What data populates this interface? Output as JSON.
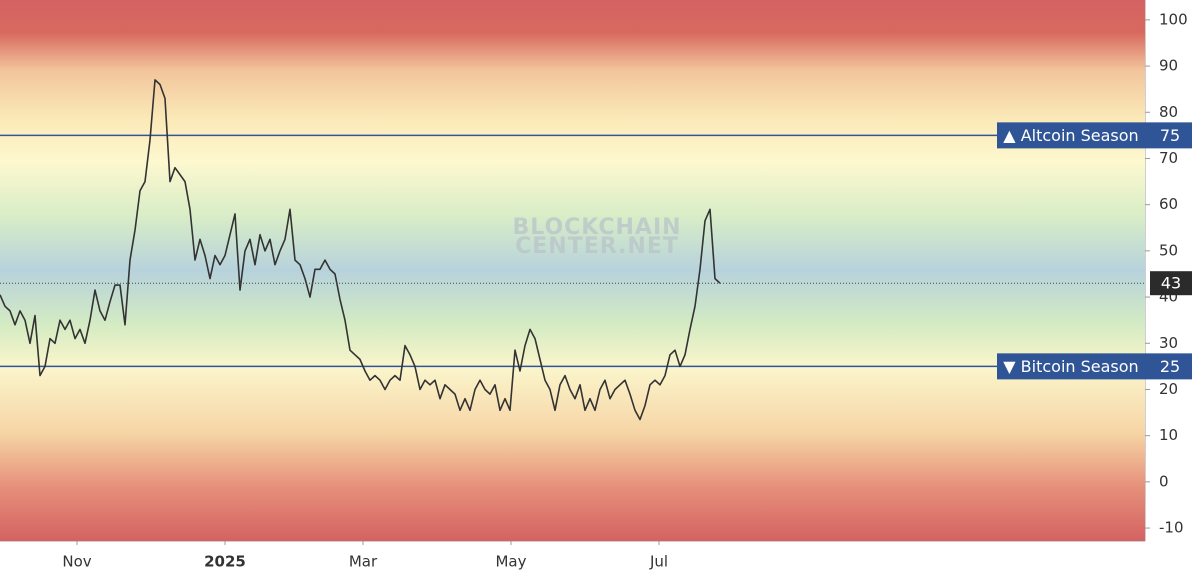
{
  "chart_data": {
    "type": "line",
    "color": "#333333",
    "values": [
      40.5,
      38,
      37,
      34,
      37,
      35,
      30,
      36,
      23,
      25,
      31,
      30,
      35,
      33,
      35,
      31,
      33,
      30,
      35,
      41.5,
      37,
      35,
      39,
      42.6,
      42.6,
      34,
      48,
      54.5,
      63,
      65,
      74,
      87,
      86,
      83,
      65,
      68,
      66.5,
      65,
      59,
      48,
      52.5,
      49,
      44,
      49,
      47,
      49,
      53.5,
      58,
      41.5,
      50,
      52.5,
      47,
      53.5,
      50,
      52.5,
      47,
      50,
      52.5,
      59,
      48,
      47,
      44,
      40,
      46,
      46,
      48,
      46,
      45,
      39.5,
      35,
      28.5,
      27.5,
      26.5,
      24,
      22,
      23,
      22,
      20,
      22,
      23,
      22,
      29.5,
      27.5,
      25,
      20,
      22,
      21,
      22,
      18,
      21,
      20,
      19,
      15.5,
      18,
      15.5,
      20,
      22,
      20,
      19,
      21,
      15.5,
      18,
      15.5,
      28.5,
      24,
      29.5,
      33,
      31,
      26.5,
      22,
      20,
      15.5,
      21,
      23,
      20,
      18,
      21,
      15.5,
      18,
      15.5,
      20,
      22,
      18,
      20,
      21,
      22,
      19,
      15.5,
      13.5,
      16.5,
      21,
      22,
      21,
      23,
      27.5,
      28.5,
      25,
      27.5,
      33,
      38,
      46,
      56.5,
      59,
      44,
      43
    ],
    "xlim": [
      0,
      229
    ],
    "xticks": [
      {
        "value": 15.4,
        "label": "Nov"
      },
      {
        "value": 45,
        "label": "2025"
      },
      {
        "value": 72.6,
        "label": "Mar"
      },
      {
        "value": 102.2,
        "label": "May"
      },
      {
        "value": 131.8,
        "label": "Jul"
      }
    ],
    "ylim": [
      -12.8,
      104.3
    ],
    "yticks": [
      -10,
      0,
      10,
      20,
      30,
      40,
      50,
      60,
      70,
      80,
      90,
      100
    ],
    "hlines": [
      {
        "value": 75,
        "label": "▲ Altcoin Season",
        "color": "#2f5597"
      },
      {
        "value": 25,
        "label": "▼ Bitcoin Season",
        "color": "#2f5597"
      }
    ],
    "watermark": [
      "BLOCKCHAIN",
      "CENTER.NET"
    ]
  }
}
